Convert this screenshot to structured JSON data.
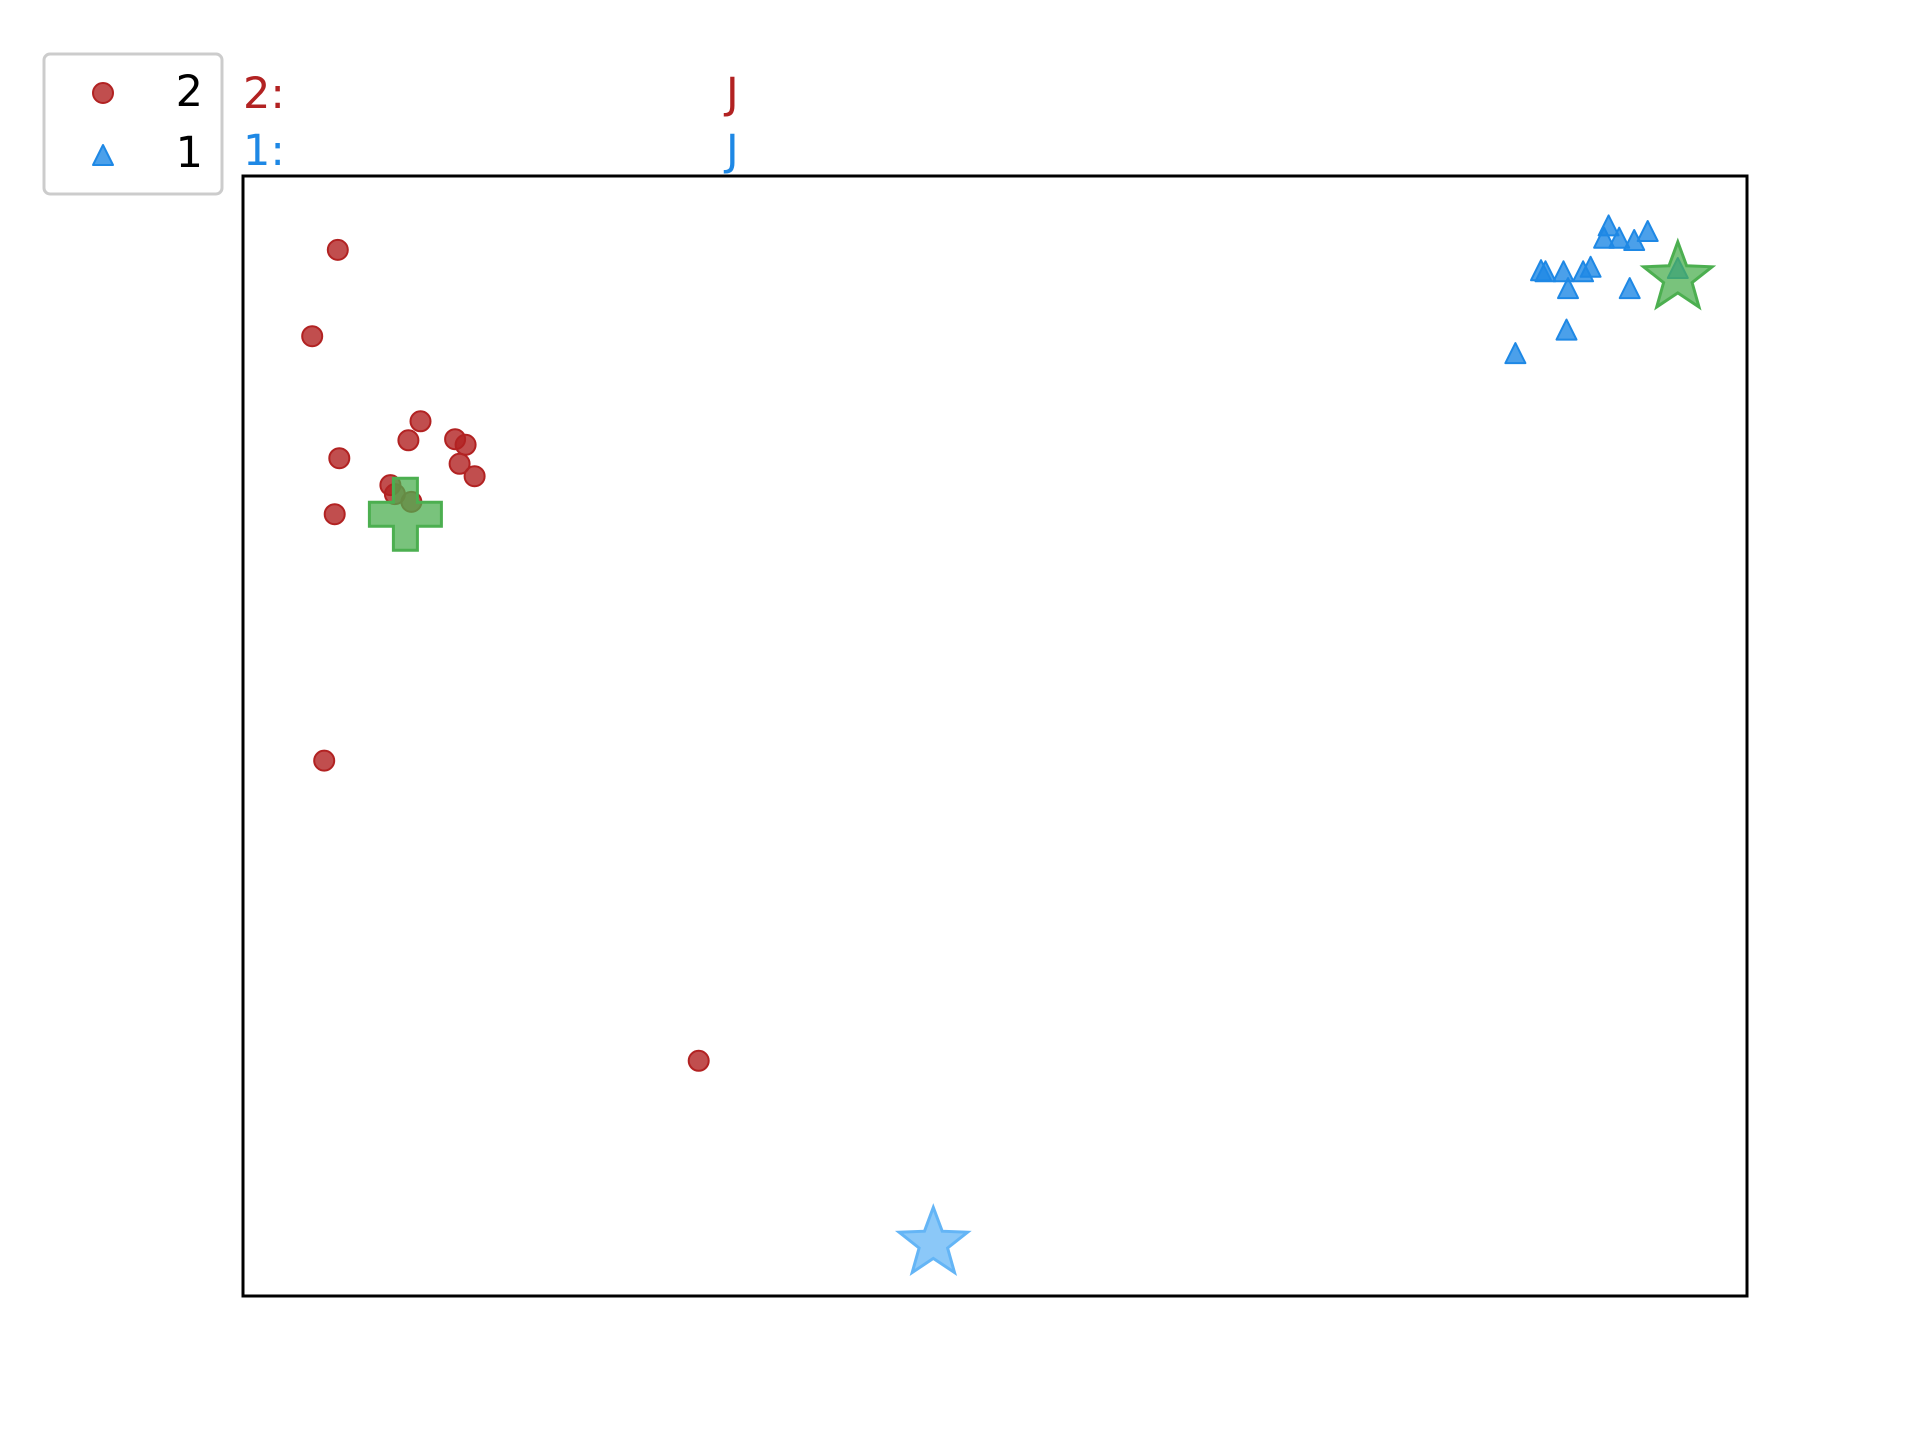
{
  "chart_data": {
    "type": "scatter",
    "title": "",
    "xlabel": "",
    "ylabel": "",
    "xlim": [
      0,
      100
    ],
    "ylim": [
      0,
      100
    ],
    "grid": false,
    "legend": {
      "placement": "outside-top-left",
      "entries": [
        "2",
        "1"
      ]
    },
    "header_lines": [
      {
        "label": "2:",
        "value": "J",
        "color": "#b22222"
      },
      {
        "label": "1:",
        "value": "J",
        "color": "#1e88e5"
      }
    ],
    "series": [
      {
        "name": "2",
        "marker": "circle",
        "color": "#b22222",
        "points": [
          [
            6.3,
            93.4
          ],
          [
            4.6,
            85.7
          ],
          [
            11.8,
            78.1
          ],
          [
            11.0,
            76.4
          ],
          [
            14.1,
            76.5
          ],
          [
            14.8,
            76.0
          ],
          [
            6.4,
            74.8
          ],
          [
            14.4,
            74.3
          ],
          [
            15.4,
            73.2
          ],
          [
            9.8,
            72.4
          ],
          [
            10.1,
            71.6
          ],
          [
            11.2,
            70.9
          ],
          [
            6.1,
            69.8
          ],
          [
            5.4,
            47.8
          ],
          [
            30.3,
            21.0
          ]
        ]
      },
      {
        "name": "1",
        "marker": "triangle",
        "color": "#1e88e5",
        "points": [
          [
            90.8,
            95.5
          ],
          [
            90.5,
            94.4
          ],
          [
            91.5,
            94.4
          ],
          [
            92.5,
            94.2
          ],
          [
            93.4,
            95.0
          ],
          [
            89.6,
            91.8
          ],
          [
            86.3,
            91.5
          ],
          [
            87.8,
            91.4
          ],
          [
            89.1,
            91.4
          ],
          [
            86.6,
            91.4
          ],
          [
            88.1,
            89.9
          ],
          [
            92.2,
            89.9
          ],
          [
            95.4,
            91.7
          ],
          [
            88.0,
            86.2
          ],
          [
            84.6,
            84.1
          ]
        ]
      }
    ],
    "special_markers": [
      {
        "marker": "plus",
        "color": "#4caf50",
        "x": 10.8,
        "y": 69.8
      },
      {
        "marker": "star",
        "color": "#4caf50",
        "x": 95.4,
        "y": 90.9
      },
      {
        "marker": "star",
        "color": "#64b5f6",
        "x": 45.9,
        "y": 4.7
      }
    ]
  }
}
